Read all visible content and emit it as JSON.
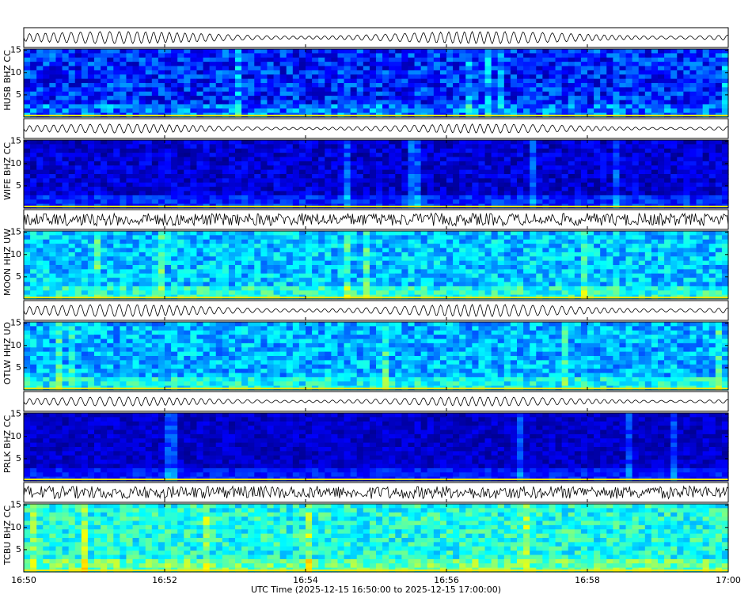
{
  "chart_data": [
    {
      "type": "spectrogram",
      "ylabel": "HUSB BHZ CC",
      "ylim": [
        0,
        15.3
      ],
      "yticks": [
        5,
        10,
        15
      ]
    },
    {
      "type": "spectrogram",
      "ylabel": "WIFE BHZ CC",
      "ylim": [
        0,
        15.3
      ],
      "yticks": [
        5,
        10,
        15
      ]
    },
    {
      "type": "spectrogram",
      "ylabel": "MOON HHZ UW",
      "ylim": [
        0,
        15.3
      ],
      "yticks": [
        5,
        10,
        15
      ]
    },
    {
      "type": "spectrogram",
      "ylabel": "OTLW HHZ UO",
      "ylim": [
        0,
        15.3
      ],
      "yticks": [
        5,
        10,
        15
      ]
    },
    {
      "type": "spectrogram",
      "ylabel": "PRLK BHZ CC",
      "ylim": [
        0,
        15.3
      ],
      "yticks": [
        5,
        10,
        15
      ]
    },
    {
      "type": "spectrogram",
      "ylabel": "TCBU BHZ CC",
      "ylim": [
        0,
        15.3
      ],
      "yticks": [
        5,
        10,
        15
      ],
      "xlabel": "UTC Time (2025-12-15 16:50:00 to 2025-12-15 17:00:00)",
      "xlim": [
        0,
        10
      ],
      "xticks": [
        {
          "value": 0,
          "label": "16:50"
        },
        {
          "value": 2,
          "label": "16:52"
        },
        {
          "value": 4,
          "label": "16:54"
        },
        {
          "value": 6,
          "label": "16:56"
        },
        {
          "value": 8,
          "label": "16:58"
        },
        {
          "value": 10,
          "label": "17:00"
        }
      ]
    }
  ]
}
